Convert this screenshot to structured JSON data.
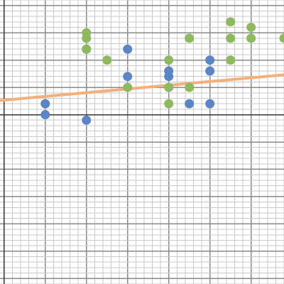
{
  "chart_data": {
    "type": "scatter",
    "title": "",
    "xlabel": "",
    "ylabel": "",
    "grid": true,
    "xlim": [
      -0.1,
      6.8
    ],
    "ylim": [
      -6.2,
      4.2
    ],
    "x_major_step": 1,
    "x_minor_step": 0.2,
    "y_major_step": 1,
    "y_minor_step": 0.2,
    "series": [
      {
        "color": "#5b85c5",
        "points": [
          [
            1,
            0
          ],
          [
            1,
            0.4
          ],
          [
            2,
            -0.2
          ],
          [
            2,
            2.4
          ],
          [
            3,
            1.4
          ],
          [
            3,
            2.4
          ],
          [
            4,
            1.0
          ],
          [
            4,
            1.4
          ],
          [
            4,
            1.6
          ],
          [
            4.5,
            0.4
          ],
          [
            5,
            0.4
          ],
          [
            5,
            1.6
          ],
          [
            5,
            2.0
          ]
        ]
      },
      {
        "color": "#8fb961",
        "points": [
          [
            2,
            2.4
          ],
          [
            2,
            2.8
          ],
          [
            2,
            3.0
          ],
          [
            2.5,
            2.0
          ],
          [
            3,
            1.0
          ],
          [
            4,
            0.4
          ],
          [
            4,
            1.0
          ],
          [
            4,
            2.0
          ],
          [
            4.5,
            1.0
          ],
          [
            4.5,
            2.8
          ],
          [
            5.5,
            2.0
          ],
          [
            5.5,
            2.8
          ],
          [
            5.5,
            3.4
          ],
          [
            6,
            2.8
          ],
          [
            6,
            3.2
          ],
          [
            6.8,
            2.8
          ]
        ]
      }
    ],
    "trendline": {
      "color": "#f4b07a",
      "x": [
        -0.1,
        6.8
      ],
      "y": [
        0.52,
        1.46
      ]
    }
  }
}
